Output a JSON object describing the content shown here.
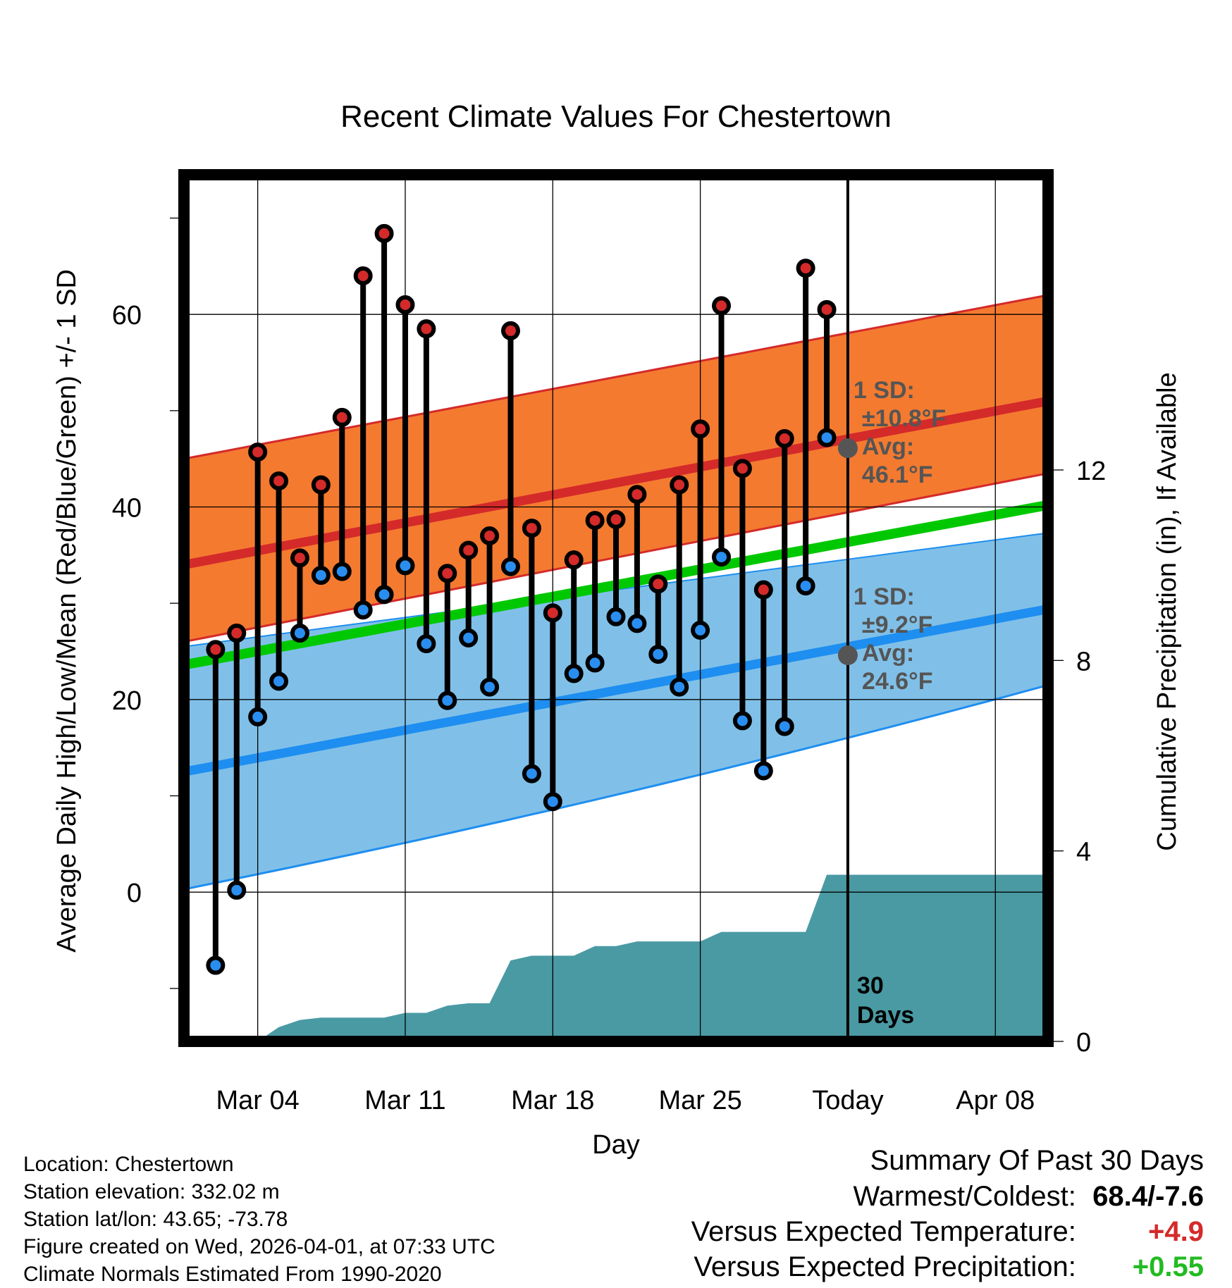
{
  "chart_data": {
    "type": "line",
    "title": "Recent Climate Values For Chestertown",
    "xlabel": "Day",
    "ylabel_left": "Average Daily High/Low/Mean (Red/Blue/Green) +/- 1 SD",
    "ylabel_right": "Cumulative Precipitation (in), If Available",
    "ylim": [
      -15.5,
      74.5
    ],
    "ylim_right": [
      0,
      18.2
    ],
    "xlim": [
      -3.5,
      37.5
    ],
    "x_ticks": [
      {
        "day": 0,
        "label": "Mar 04"
      },
      {
        "day": 7,
        "label": "Mar 11"
      },
      {
        "day": 14,
        "label": "Mar 18"
      },
      {
        "day": 21,
        "label": "Mar 25"
      },
      {
        "day": 28,
        "label": "Today"
      },
      {
        "day": 35,
        "label": "Apr 08"
      }
    ],
    "y_ticks_left": [
      0,
      20,
      40,
      60
    ],
    "y_ticks_right": [
      0,
      4,
      8,
      12
    ],
    "observed": {
      "days": [
        -2,
        -1,
        0,
        1,
        2,
        3,
        4,
        5,
        6,
        7,
        8,
        9,
        10,
        11,
        12,
        13,
        14,
        15,
        16,
        17,
        18,
        19,
        20,
        21,
        22,
        23,
        24,
        25,
        26,
        27
      ],
      "highs": [
        25.2,
        26.9,
        45.7,
        42.7,
        34.7,
        42.3,
        49.3,
        64.0,
        68.4,
        61.0,
        58.5,
        33.1,
        35.5,
        37.0,
        58.3,
        37.8,
        29.0,
        34.5,
        38.6,
        38.7,
        41.3,
        32.0,
        42.3,
        48.1,
        60.9,
        44.0,
        31.4,
        47.1,
        64.8,
        60.5
      ],
      "lows": [
        -7.6,
        0.2,
        18.2,
        21.9,
        26.9,
        32.9,
        33.3,
        29.3,
        30.9,
        33.9,
        25.8,
        19.9,
        26.4,
        21.3,
        33.8,
        12.3,
        9.4,
        22.7,
        23.8,
        28.6,
        27.9,
        24.7,
        21.3,
        27.2,
        34.8,
        17.8,
        12.6,
        17.2,
        31.8,
        47.2
      ]
    },
    "normals": {
      "days": [
        -3.5,
        37.5
      ],
      "high_mean": [
        34.0,
        51.0
      ],
      "high_sd_upper": [
        45.0,
        62.0
      ],
      "high_sd_lower": [
        26.0,
        43.5
      ],
      "low_mean": [
        12.5,
        29.4
      ],
      "low_sd_upper": [
        25.5,
        37.3
      ],
      "low_sd_lower": [
        0.3,
        21.5
      ],
      "mean": [
        23.6,
        40.2
      ]
    },
    "precip": {
      "days": [
        -3.5,
        0,
        0.5,
        1,
        2,
        3,
        4,
        5,
        6,
        7,
        8,
        9,
        10,
        11,
        12,
        13,
        14,
        15,
        16,
        17,
        18,
        19,
        20,
        21,
        22,
        23,
        24,
        25,
        26,
        27,
        28,
        37.5
      ],
      "cumulative": [
        0,
        0,
        0.15,
        0.3,
        0.45,
        0.5,
        0.5,
        0.5,
        0.5,
        0.6,
        0.6,
        0.75,
        0.8,
        0.8,
        1.7,
        1.8,
        1.8,
        1.8,
        2.0,
        2.0,
        2.1,
        2.1,
        2.1,
        2.1,
        2.3,
        2.3,
        2.3,
        2.3,
        2.3,
        3.5,
        3.5,
        3.5
      ]
    },
    "annotations": {
      "high": {
        "line1": "1 SD:",
        "line2": "±10.8°F",
        "line3": "Avg:",
        "line4": "46.1°F",
        "value": 46.1,
        "sd": 10.8
      },
      "low": {
        "line1": "1 SD:",
        "line2": "±9.2°F",
        "line3": "Avg:",
        "line4": "24.6°F",
        "value": 24.6,
        "sd": 9.2
      },
      "days_label": {
        "line1": "30",
        "line2": "Days"
      }
    },
    "colors": {
      "high_band": "#f47a30",
      "high_line": "#d42a2a",
      "low_band": "#80c0e8",
      "low_line": "#1e8ef0",
      "mean_line": "#00c800",
      "precip": "#4a9aa4",
      "high_dot": "#d42a2a",
      "low_dot": "#2a8ef0",
      "annotation": "#555555"
    }
  },
  "station_info": [
    "Location: Chestertown",
    "Station elevation: 332.02 m",
    "Station lat/lon: 43.65; -73.78",
    "Figure created on Wed, 2026-04-01, at 07:33 UTC",
    "Climate Normals Estimated From 1990-2020"
  ],
  "summary": {
    "title": "Summary Of Past 30 Days",
    "warmest_label": "Warmest/Coldest:",
    "warmest_value": "68.4/-7.6",
    "temp_label": "Versus Expected Temperature:",
    "temp_value": "+4.9",
    "precip_label": "Versus Expected Precipitation:",
    "precip_value": "+0.55",
    "temp_color": "#d42a2a",
    "precip_color": "#22bb22"
  }
}
